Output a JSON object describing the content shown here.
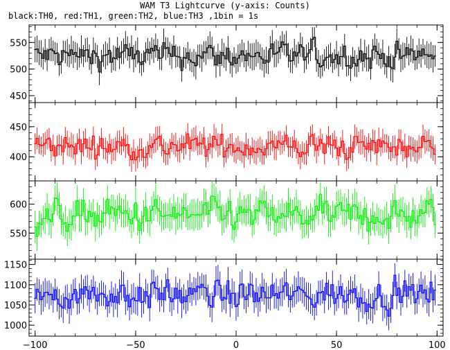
{
  "figure": {
    "title": "WAM T3 Lightcurve (y-axis: Counts)",
    "subtitle": "black:TH0, red:TH1, green:TH2, blue:TH3 ,1bin = 1s"
  },
  "chart_data": [
    {
      "type": "line",
      "series": [
        {
          "name": "TH0",
          "color": "#000000",
          "amplitude": 22
        }
      ],
      "x_range": [
        -100,
        99
      ],
      "ylim": [
        437,
        583
      ],
      "yticks": [
        450,
        500,
        550
      ],
      "ytick_labels": [
        "450",
        "500",
        "550"
      ],
      "mean": 525,
      "error_bars": true,
      "grid": false
    },
    {
      "type": "line",
      "series": [
        {
          "name": "TH1",
          "color": "#ff0000",
          "amplitude": 18
        }
      ],
      "x_range": [
        -100,
        99
      ],
      "ylim": [
        360,
        490
      ],
      "yticks": [
        400,
        450
      ],
      "ytick_labels": [
        "400",
        "450"
      ],
      "mean": 417,
      "error_bars": true,
      "grid": false
    },
    {
      "type": "line",
      "series": [
        {
          "name": "TH2",
          "color": "#00ee00",
          "amplitude": 24
        }
      ],
      "x_range": [
        -100,
        99
      ],
      "ylim": [
        505,
        640
      ],
      "yticks": [
        550,
        600
      ],
      "ytick_labels": [
        "550",
        "600"
      ],
      "mean": 580,
      "error_bars": true,
      "grid": false
    },
    {
      "type": "line",
      "series": [
        {
          "name": "TH3",
          "color": "#0000ff",
          "amplitude": 32
        }
      ],
      "x_range": [
        -100,
        99
      ],
      "ylim": [
        973,
        1163
      ],
      "yticks": [
        1000,
        1050,
        1100,
        1150
      ],
      "ytick_labels": [
        "1000",
        "1050",
        "1100",
        "1150"
      ],
      "mean": 1075,
      "error_bars": true,
      "grid": false,
      "xlim": [
        -103,
        103
      ],
      "xticks": [
        -100,
        -50,
        0,
        50,
        100
      ],
      "xtick_labels": [
        "−100",
        "−50",
        "0",
        "50",
        "100"
      ]
    }
  ]
}
